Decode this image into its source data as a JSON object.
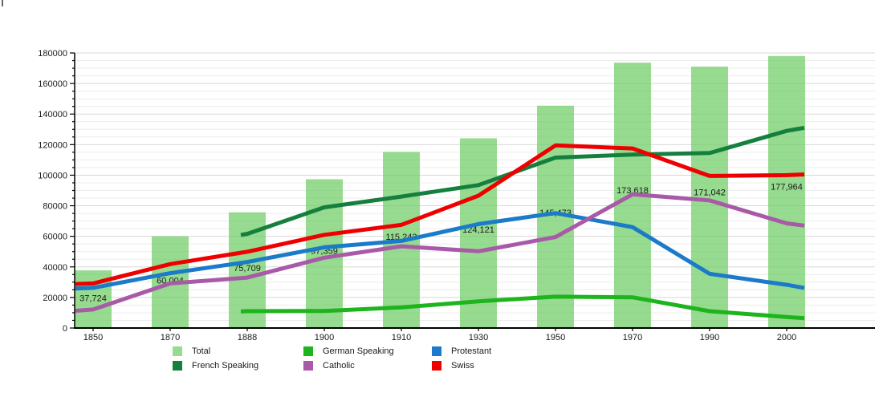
{
  "chart_data": {
    "type": "bar",
    "subtype": "composite-bar-line-timeline",
    "title": "",
    "categories": [
      "1850",
      "1870",
      "1888",
      "1900",
      "1910",
      "1930",
      "1950",
      "1970",
      "1990",
      "2000"
    ],
    "y_axis": {
      "min": 0,
      "max": 180000,
      "major_tick": 20000,
      "minor_tick": 5000,
      "tick_labels": [
        "0",
        "20000",
        "40000",
        "60000",
        "80000",
        "100000",
        "120000",
        "140000",
        "160000",
        "180000"
      ],
      "grid": "on"
    },
    "bars": {
      "name": "Total",
      "color": "#97db8f",
      "fill_rgba": "rgba(110,205,100,0.72)",
      "values": [
        37724,
        60004,
        75709,
        97359,
        115243,
        124121,
        145473,
        173618,
        171042,
        177964
      ],
      "labels": [
        "37,724",
        "60,004",
        "75,709",
        "97,359",
        "115,243",
        "124,121",
        "145,473",
        "173,618",
        "171,042",
        "177,964"
      ]
    },
    "series": [
      {
        "name": "French Speaking",
        "color": "#157f3d",
        "values": [
          null,
          null,
          61600,
          79000,
          86000,
          93500,
          111500,
          113500,
          114500,
          129000
        ],
        "edge_start": 60900,
        "edge_end": 131000
      },
      {
        "name": "German Speaking",
        "color": "#1db41d",
        "values": [
          null,
          null,
          11000,
          11200,
          13500,
          17500,
          20500,
          20100,
          11000,
          7200
        ],
        "edge_start": 10900,
        "edge_end": 6400
      },
      {
        "name": "Protestant",
        "color": "#1b7ac9",
        "values": [
          26300,
          35900,
          43200,
          52800,
          57000,
          68000,
          75200,
          66000,
          35500,
          28300
        ],
        "edge_start": 25800,
        "edge_end": 26200
      },
      {
        "name": "Catholic",
        "color": "#a85aa8",
        "values": [
          12100,
          29200,
          33000,
          46000,
          53500,
          50200,
          59500,
          87500,
          83500,
          68500
        ],
        "edge_start": 11300,
        "edge_end": 67000
      },
      {
        "name": "Swiss",
        "color": "#ee0000",
        "values": [
          29200,
          41800,
          49900,
          61000,
          67500,
          86600,
          119500,
          117500,
          99500,
          100000
        ],
        "edge_start": 28800,
        "edge_end": 100500
      }
    ],
    "legend": {
      "position": "bottom",
      "rows": [
        [
          {
            "label": "Total",
            "color": "#97db8f"
          },
          {
            "label": "German Speaking",
            "color": "#1db41d"
          },
          {
            "label": "Protestant",
            "color": "#1b7ac9"
          }
        ],
        [
          {
            "label": "French Speaking",
            "color": "#157f3d"
          },
          {
            "label": "Catholic",
            "color": "#a85aa8"
          },
          {
            "label": "Swiss",
            "color": "#ee0000"
          }
        ]
      ]
    }
  }
}
